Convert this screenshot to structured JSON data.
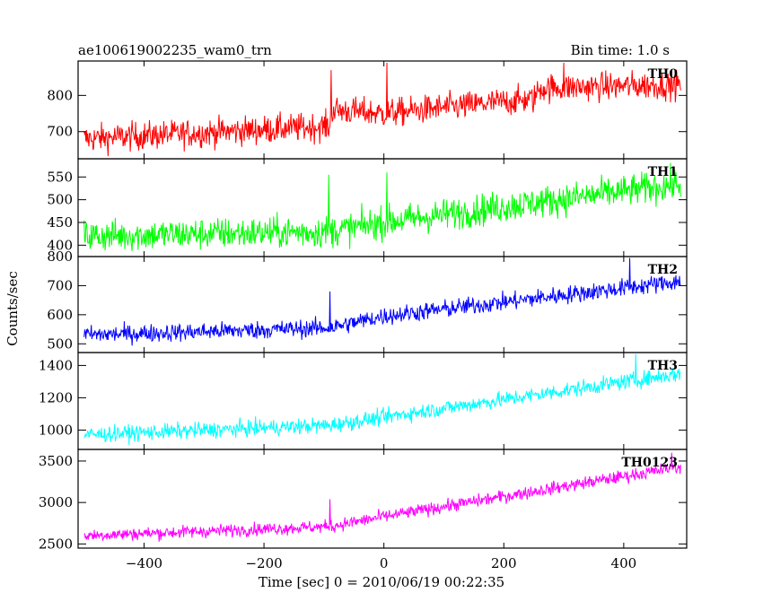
{
  "chart_data": {
    "type": "line",
    "title": "ae100619002235_wam0_trn",
    "subtitle": "Bin time: 1.0 s",
    "xlabel": "Time [sec] 0 = 2010/06/19 00:22:35",
    "ylabel": "Counts/sec",
    "xlim": [
      -510,
      505
    ],
    "x_ticks": [
      -400,
      -200,
      0,
      200,
      400
    ],
    "x_tick_labels": [
      "−400",
      "−200",
      "0",
      "200",
      "400"
    ],
    "x_start": -500,
    "x_end": 495,
    "grid": false,
    "panels": [
      {
        "name": "TH0",
        "color": "#ff0000",
        "ylim": [
          625,
          895
        ],
        "y_ticks": [
          700,
          800
        ],
        "y_tick_labels": [
          "700",
          "800"
        ],
        "trend": [
          {
            "x": -500,
            "y": 680
          },
          {
            "x": -90,
            "y": 715
          },
          {
            "x": -88,
            "y": 760
          },
          {
            "x": 0,
            "y": 750
          },
          {
            "x": 250,
            "y": 790
          },
          {
            "x": 260,
            "y": 820
          },
          {
            "x": 495,
            "y": 830
          }
        ],
        "noise": 28,
        "spikes": [
          {
            "x": -88,
            "y": 870
          },
          {
            "x": 5,
            "y": 890
          },
          {
            "x": 300,
            "y": 890
          }
        ]
      },
      {
        "name": "TH1",
        "color": "#00ff00",
        "ylim": [
          375,
          590
        ],
        "y_ticks": [
          400,
          450,
          500,
          550
        ],
        "y_tick_labels": [
          "400",
          "450",
          "500",
          "550"
        ],
        "trend": [
          {
            "x": -500,
            "y": 420
          },
          {
            "x": -90,
            "y": 430
          },
          {
            "x": 0,
            "y": 450
          },
          {
            "x": 495,
            "y": 535
          }
        ],
        "noise": 25,
        "spikes": [
          {
            "x": -92,
            "y": 555
          },
          {
            "x": 5,
            "y": 560
          }
        ]
      },
      {
        "name": "TH2",
        "color": "#0000ff",
        "ylim": [
          470,
          800
        ],
        "y_ticks": [
          500,
          600,
          700,
          800
        ],
        "y_tick_labels": [
          "500",
          "600",
          "700",
          "800"
        ],
        "trend": [
          {
            "x": -500,
            "y": 530
          },
          {
            "x": -90,
            "y": 555
          },
          {
            "x": 0,
            "y": 595
          },
          {
            "x": 495,
            "y": 715
          }
        ],
        "noise": 22,
        "spikes": [
          {
            "x": -90,
            "y": 680
          },
          {
            "x": 410,
            "y": 795
          }
        ]
      },
      {
        "name": "TH3",
        "color": "#00ffff",
        "ylim": [
          880,
          1480
        ],
        "y_ticks": [
          1000,
          1200,
          1400
        ],
        "y_tick_labels": [
          "1000",
          "1200",
          "1400"
        ],
        "trend": [
          {
            "x": -500,
            "y": 970
          },
          {
            "x": -90,
            "y": 1030
          },
          {
            "x": 0,
            "y": 1080
          },
          {
            "x": 495,
            "y": 1350
          }
        ],
        "noise": 35,
        "spikes": [
          {
            "x": 420,
            "y": 1470
          }
        ]
      },
      {
        "name": "TH0123",
        "color": "#ff00ff",
        "ylim": [
          2450,
          3640
        ],
        "y_ticks": [
          2500,
          3000,
          3500
        ],
        "y_tick_labels": [
          "2500",
          "3000",
          "3500"
        ],
        "trend": [
          {
            "x": -500,
            "y": 2600
          },
          {
            "x": -90,
            "y": 2710
          },
          {
            "x": 0,
            "y": 2830
          },
          {
            "x": 495,
            "y": 3430
          }
        ],
        "noise": 55,
        "spikes": [
          {
            "x": -90,
            "y": 3040
          },
          {
            "x": 480,
            "y": 3600
          }
        ]
      }
    ]
  }
}
